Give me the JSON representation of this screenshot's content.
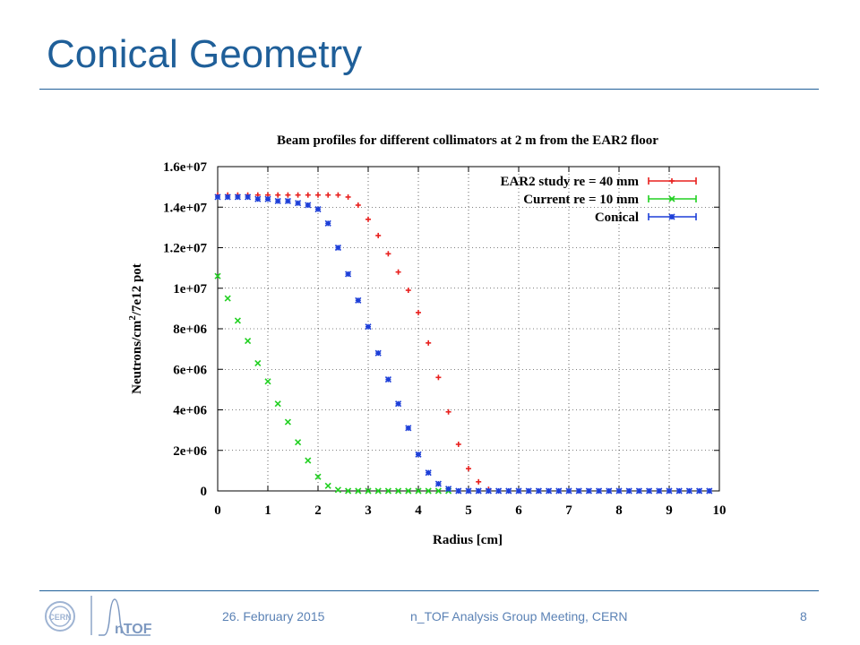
{
  "slide": {
    "title": "Conical Geometry",
    "footer_date": "26. February 2015",
    "footer_meeting": "n_TOF Analysis Group Meeting, CERN",
    "page_number": "8",
    "logo_cern_text": "CERN",
    "logo_ntof_text": "nTOF",
    "accent_color": "#1f5f99"
  },
  "chart_data": {
    "type": "scatter",
    "title": "Beam profiles for different collimators at 2 m from the EAR2 floor",
    "xlabel": "Radius [cm]",
    "ylabel_prefix": "Neutrons/cm",
    "ylabel_sup": "2",
    "ylabel_suffix": "/7e12 pot",
    "xlim": [
      0,
      10
    ],
    "ylim": [
      0,
      16000000
    ],
    "grid": true,
    "legend_position": "top-right",
    "x_ticks": [
      0,
      1,
      2,
      3,
      4,
      5,
      6,
      7,
      8,
      9,
      10
    ],
    "x_tick_labels": [
      "0",
      "1",
      "2",
      "3",
      "4",
      "5",
      "6",
      "7",
      "8",
      "9",
      "10"
    ],
    "y_ticks": [
      0,
      2000000,
      4000000,
      6000000,
      8000000,
      10000000,
      12000000,
      14000000,
      16000000
    ],
    "y_tick_labels": [
      "0",
      "2e+06",
      "4e+06",
      "6e+06",
      "8e+06",
      "1e+07",
      "1.2e+07",
      "1.4e+07",
      "1.6e+07"
    ],
    "series": [
      {
        "name": "EAR2 study re = 40 mm",
        "color": "#e8201e",
        "marker": "plus",
        "points": [
          [
            0,
            14600000
          ],
          [
            0.2,
            14600000
          ],
          [
            0.4,
            14600000
          ],
          [
            0.6,
            14600000
          ],
          [
            0.8,
            14600000
          ],
          [
            1.0,
            14600000
          ],
          [
            1.2,
            14600000
          ],
          [
            1.4,
            14600000
          ],
          [
            1.6,
            14600000
          ],
          [
            1.8,
            14600000
          ],
          [
            2.0,
            14600000
          ],
          [
            2.2,
            14600000
          ],
          [
            2.4,
            14600000
          ],
          [
            2.6,
            14500000
          ],
          [
            2.8,
            14100000
          ],
          [
            3.0,
            13400000
          ],
          [
            3.2,
            12600000
          ],
          [
            3.4,
            11700000
          ],
          [
            3.6,
            10800000
          ],
          [
            3.8,
            9900000
          ],
          [
            4.0,
            8800000
          ],
          [
            4.2,
            7300000
          ],
          [
            4.4,
            5600000
          ],
          [
            4.6,
            3900000
          ],
          [
            4.8,
            2300000
          ],
          [
            5.0,
            1100000
          ],
          [
            5.2,
            450000
          ],
          [
            5.4,
            80000
          ]
        ]
      },
      {
        "name": "Current re = 10 mm",
        "color": "#22d022",
        "marker": "cross",
        "points": [
          [
            0,
            10600000
          ],
          [
            0.2,
            9500000
          ],
          [
            0.4,
            8400000
          ],
          [
            0.6,
            7400000
          ],
          [
            0.8,
            6300000
          ],
          [
            1.0,
            5400000
          ],
          [
            1.2,
            4300000
          ],
          [
            1.4,
            3400000
          ],
          [
            1.6,
            2400000
          ],
          [
            1.8,
            1500000
          ],
          [
            2.0,
            700000
          ],
          [
            2.2,
            250000
          ],
          [
            2.4,
            50000
          ],
          [
            2.6,
            0
          ],
          [
            2.8,
            0
          ],
          [
            3.0,
            0
          ],
          [
            3.2,
            0
          ],
          [
            3.4,
            0
          ],
          [
            3.6,
            0
          ],
          [
            3.8,
            0
          ],
          [
            4.0,
            0
          ],
          [
            4.2,
            0
          ],
          [
            4.4,
            0
          ],
          [
            4.6,
            0
          ]
        ]
      },
      {
        "name": "Conical",
        "color": "#1d3fd8",
        "marker": "star",
        "points": [
          [
            0,
            14500000
          ],
          [
            0.2,
            14500000
          ],
          [
            0.4,
            14500000
          ],
          [
            0.6,
            14500000
          ],
          [
            0.8,
            14400000
          ],
          [
            1.0,
            14400000
          ],
          [
            1.2,
            14300000
          ],
          [
            1.4,
            14300000
          ],
          [
            1.6,
            14200000
          ],
          [
            1.8,
            14100000
          ],
          [
            2.0,
            13900000
          ],
          [
            2.2,
            13200000
          ],
          [
            2.4,
            12000000
          ],
          [
            2.6,
            10700000
          ],
          [
            2.8,
            9400000
          ],
          [
            3.0,
            8100000
          ],
          [
            3.2,
            6800000
          ],
          [
            3.4,
            5500000
          ],
          [
            3.6,
            4300000
          ],
          [
            3.8,
            3100000
          ],
          [
            4.0,
            1800000
          ],
          [
            4.2,
            900000
          ],
          [
            4.4,
            350000
          ],
          [
            4.6,
            100000
          ],
          [
            4.8,
            0
          ],
          [
            5.0,
            0
          ],
          [
            5.2,
            0
          ],
          [
            5.4,
            0
          ],
          [
            5.6,
            0
          ],
          [
            5.8,
            0
          ],
          [
            6.0,
            0
          ],
          [
            6.2,
            0
          ],
          [
            6.4,
            0
          ],
          [
            6.6,
            0
          ],
          [
            6.8,
            0
          ],
          [
            7.0,
            0
          ],
          [
            7.2,
            0
          ],
          [
            7.4,
            0
          ],
          [
            7.6,
            0
          ],
          [
            7.8,
            0
          ],
          [
            8.0,
            0
          ],
          [
            8.2,
            0
          ],
          [
            8.4,
            0
          ],
          [
            8.6,
            0
          ],
          [
            8.8,
            0
          ],
          [
            9.0,
            0
          ],
          [
            9.2,
            0
          ],
          [
            9.4,
            0
          ],
          [
            9.6,
            0
          ],
          [
            9.8,
            0
          ]
        ]
      }
    ]
  }
}
